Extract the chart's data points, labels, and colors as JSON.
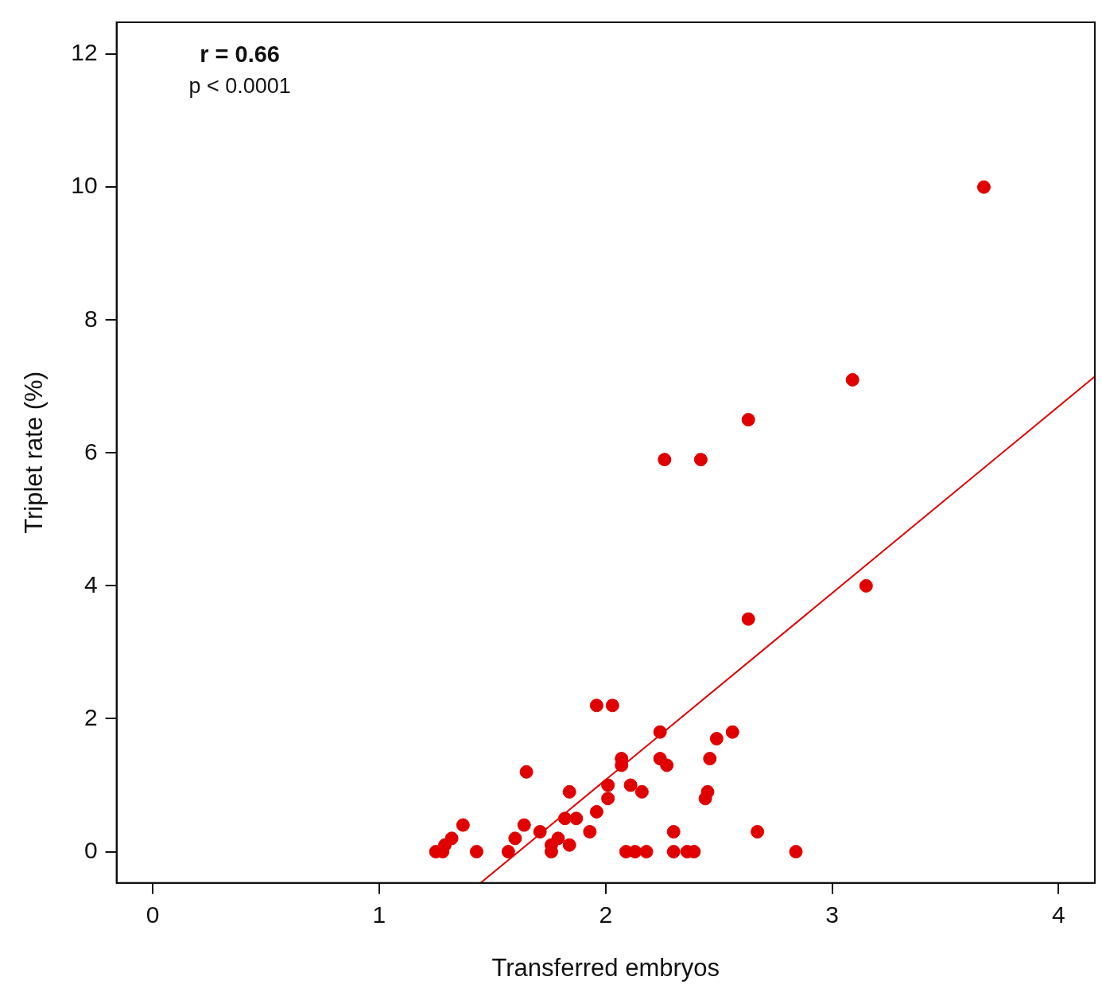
{
  "chart_data": {
    "type": "scatter",
    "xlabel": "Transferred embryos",
    "ylabel": "Triplet rate (%)",
    "annotations": [
      "r = 0.66",
      "p < 0.0001"
    ],
    "xlim": [
      -0.16,
      4.16
    ],
    "ylim": [
      -0.47,
      12.48
    ],
    "xticks": [
      0,
      1,
      2,
      3,
      4
    ],
    "yticks": [
      0,
      2,
      4,
      6,
      8,
      10,
      12
    ],
    "grid": false,
    "legend": false,
    "series": [
      {
        "color": "#e00000",
        "marker": "circle",
        "x": [
          1.25,
          1.28,
          1.29,
          1.32,
          1.37,
          1.43,
          1.57,
          1.6,
          1.64,
          1.65,
          1.71,
          1.76,
          1.76,
          1.79,
          1.82,
          1.84,
          1.84,
          1.87,
          1.93,
          1.96,
          1.96,
          2.01,
          2.01,
          2.03,
          2.07,
          2.07,
          2.09,
          2.11,
          2.13,
          2.16,
          2.18,
          2.24,
          2.24,
          2.26,
          2.27,
          2.3,
          2.3,
          2.36,
          2.39,
          2.42,
          2.44,
          2.45,
          2.46,
          2.49,
          2.56,
          2.63,
          2.63,
          2.67,
          2.84,
          3.09,
          3.15,
          3.67
        ],
        "values": [
          0,
          0,
          0.1,
          0.2,
          0.4,
          0,
          0,
          0.2,
          0.4,
          1.2,
          0.3,
          0,
          0.1,
          0.2,
          0.5,
          0.1,
          0.9,
          0.5,
          0.3,
          0.6,
          2.2,
          0.8,
          1.0,
          2.2,
          1.3,
          1.4,
          0,
          1.0,
          0,
          0.9,
          0,
          1.4,
          1.8,
          5.9,
          1.3,
          0.3,
          0,
          0,
          0,
          5.9,
          0.8,
          0.9,
          1.4,
          1.7,
          1.8,
          6.5,
          3.5,
          0.3,
          0,
          7.1,
          4.0,
          10.0
        ]
      },
      {
        "type": "line",
        "marker": "none",
        "color": "#e00000",
        "x": [
          1.448,
          4.16
        ],
        "values": [
          -0.47,
          7.15
        ]
      }
    ]
  }
}
